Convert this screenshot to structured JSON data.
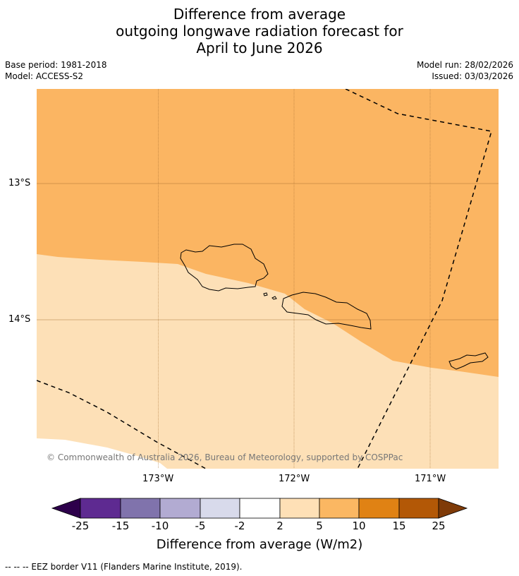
{
  "title": {
    "line1": "Difference from average",
    "line2": "outgoing longwave radiation forecast for",
    "line3": "April to June 2026"
  },
  "meta": {
    "base_period": "Base period: 1981-2018",
    "model": "Model: ACCESS-S2",
    "model_run": "Model run: 28/02/2026",
    "issued": "Issued: 03/03/2026"
  },
  "map": {
    "lat_labels": [
      "13°S",
      "14°S"
    ],
    "lon_labels": [
      "173°W",
      "172°W",
      "171°W"
    ],
    "copyright": "© Commonwealth of Australia 2026, Bureau of Meteorology, supported by COSPPac",
    "region_colors": {
      "class_5_10": "#fbb562",
      "class_2_5": "#fde0b7"
    }
  },
  "colorbar": {
    "ticks": [
      "-25",
      "-15",
      "-10",
      "-5",
      "-2",
      "2",
      "5",
      "10",
      "15",
      "25"
    ],
    "colors": [
      "#2d004b",
      "#5e2a91",
      "#8073ac",
      "#b2abd2",
      "#d8daeb",
      "#ffffff",
      "#fee0b6",
      "#fbb762",
      "#e08214",
      "#b35806",
      "#7f3b08"
    ],
    "label": "Difference from average (W/m2)"
  },
  "footer": {
    "eez_note": "--  --  -- EEZ border V11 (Flanders Marine Institute, 2019)."
  }
}
